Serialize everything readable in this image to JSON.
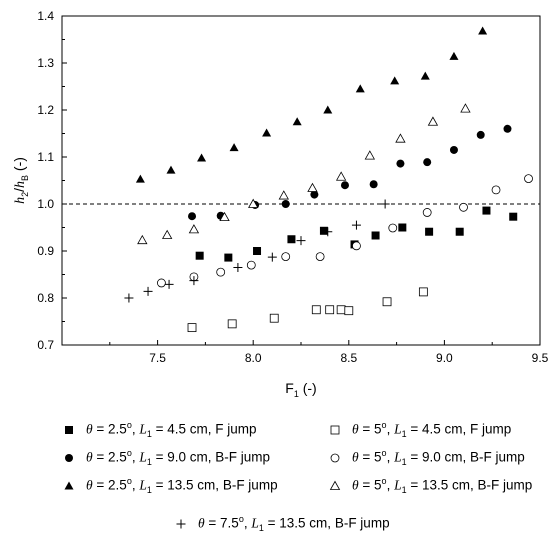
{
  "chart_data": {
    "type": "scatter",
    "title": "",
    "xlabel": "F1 (-)",
    "ylabel": "h2/hB (-)",
    "xlim": [
      7.0,
      9.5
    ],
    "ylim": [
      0.7,
      1.4
    ],
    "x_ticks": [
      "7.5",
      "8.0",
      "8.5",
      "9.0",
      "9.5"
    ],
    "y_ticks": [
      "0.7",
      "0.8",
      "0.9",
      "1.0",
      "1.1",
      "1.2",
      "1.3",
      "1.4"
    ],
    "reference_line": {
      "y": 1.0,
      "style": "dashed"
    },
    "legend_placement": "bottom",
    "series": [
      {
        "name": "θ = 2.5°, L1 = 4.5 cm, F jump",
        "theta": "2.5",
        "L1": "4.5 cm",
        "jump": "F jump",
        "marker": "filled-square",
        "x": [
          7.72,
          7.87,
          8.02,
          8.2,
          8.37,
          8.53,
          8.64,
          8.78,
          8.92,
          9.08,
          9.22,
          9.36
        ],
        "y": [
          0.89,
          0.886,
          0.9,
          0.925,
          0.943,
          0.914,
          0.933,
          0.95,
          0.941,
          0.941,
          0.986,
          0.973
        ]
      },
      {
        "name": "θ = 2.5°, L1 = 9.0 cm, B-F jump",
        "theta": "2.5",
        "L1": "9.0 cm",
        "jump": "B-F jump",
        "marker": "filled-circle",
        "x": [
          7.68,
          7.83,
          8.01,
          8.17,
          8.32,
          8.48,
          8.63,
          8.77,
          8.91,
          9.05,
          9.19,
          9.33
        ],
        "y": [
          0.974,
          0.975,
          0.998,
          1.0,
          1.02,
          1.04,
          1.042,
          1.086,
          1.089,
          1.115,
          1.147,
          1.16
        ]
      },
      {
        "name": "θ = 2.5°, L1 = 13.5 cm, B-F jump",
        "theta": "2.5",
        "L1": "13.5 cm",
        "jump": "B-F jump",
        "marker": "filled-triangle",
        "x": [
          7.41,
          7.57,
          7.73,
          7.9,
          8.07,
          8.23,
          8.39,
          8.56,
          8.74,
          8.9,
          9.05,
          9.2
        ],
        "y": [
          1.053,
          1.072,
          1.098,
          1.12,
          1.151,
          1.175,
          1.2,
          1.245,
          1.262,
          1.272,
          1.314,
          1.368
        ]
      },
      {
        "name": "θ = 5°, L1 = 4.5 cm, F jump",
        "theta": "5",
        "L1": "4.5 cm",
        "jump": "F jump",
        "marker": "open-square",
        "x": [
          7.68,
          7.89,
          8.11,
          8.33,
          8.4,
          8.46,
          8.5,
          8.7,
          8.89
        ],
        "y": [
          0.737,
          0.745,
          0.757,
          0.775,
          0.775,
          0.775,
          0.773,
          0.792,
          0.813
        ]
      },
      {
        "name": "θ = 5°, L1 = 9.0 cm, B-F jump",
        "theta": "5",
        "L1": "9.0 cm",
        "jump": "B-F jump",
        "marker": "open-circle",
        "x": [
          7.52,
          7.69,
          7.83,
          7.99,
          8.17,
          8.35,
          8.54,
          8.73,
          8.91,
          9.1,
          9.27,
          9.44
        ],
        "y": [
          0.832,
          0.845,
          0.855,
          0.87,
          0.888,
          0.888,
          0.911,
          0.949,
          0.982,
          0.993,
          1.03,
          1.054
        ]
      },
      {
        "name": "θ = 5°, L1 = 13.5 cm, B-F jump",
        "theta": "5",
        "L1": "13.5 cm",
        "jump": "B-F jump",
        "marker": "open-triangle",
        "x": [
          7.42,
          7.55,
          7.69,
          7.85,
          8.0,
          8.16,
          8.31,
          8.46,
          8.61,
          8.77,
          8.94,
          9.11
        ],
        "y": [
          0.923,
          0.934,
          0.946,
          0.972,
          1.0,
          1.018,
          1.034,
          1.058,
          1.103,
          1.139,
          1.175,
          1.203
        ]
      },
      {
        "name": "θ = 7.5°, L1 = 13.5 cm, B-F jump",
        "theta": "7.5",
        "L1": "13.5 cm",
        "jump": "B-F jump",
        "marker": "plus",
        "x": [
          7.35,
          7.45,
          7.56,
          7.69,
          7.92,
          8.1,
          8.25,
          8.39,
          8.54,
          8.69
        ],
        "y": [
          0.8,
          0.814,
          0.829,
          0.837,
          0.865,
          0.887,
          0.922,
          0.941,
          0.955,
          1.0
        ]
      }
    ]
  },
  "legend": {
    "theta_symbol": "θ",
    "L_symbol": "L",
    "L_sub": "1",
    "equals": " = ",
    "degree": "o"
  },
  "colors": {
    "ink": "#000000",
    "background": "#ffffff"
  }
}
